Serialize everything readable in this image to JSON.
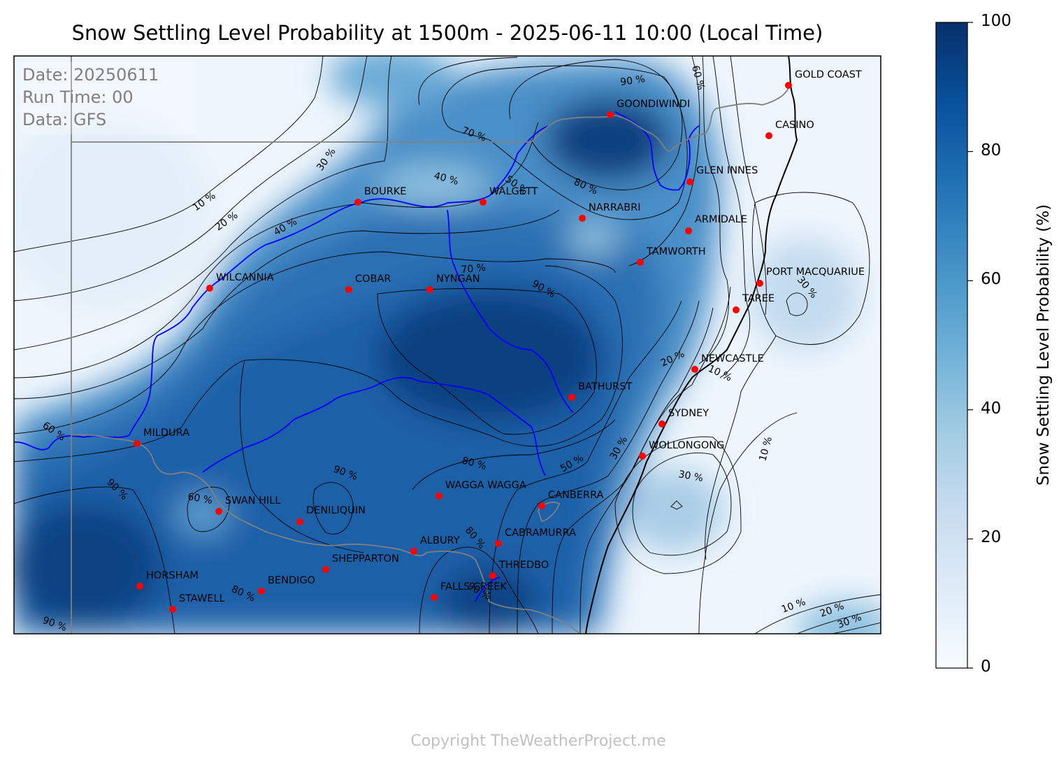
{
  "title": "Snow Settling Level Probability at 1500m - 2025-06-11 10:00 (Local Time)",
  "info": {
    "date": "Date: 20250611",
    "run": "Run Time: 00",
    "source": "Data: GFS"
  },
  "cities": [
    {
      "name": "GOLD COAST"
    },
    {
      "name": "GOONDIWINDI"
    },
    {
      "name": "CASINO"
    },
    {
      "name": "GLEN INNES"
    },
    {
      "name": "BOURKE"
    },
    {
      "name": "WALGETT"
    },
    {
      "name": "NARRABRI"
    },
    {
      "name": "ARMIDALE"
    },
    {
      "name": "TAMWORTH"
    },
    {
      "name": "WILCANNIA"
    },
    {
      "name": "COBAR"
    },
    {
      "name": "NYNGAN"
    },
    {
      "name": "PORT MACQUARIUE"
    },
    {
      "name": "TAREE"
    },
    {
      "name": "NEWCASTLE"
    },
    {
      "name": "BATHURST"
    },
    {
      "name": "SYDNEY"
    },
    {
      "name": "MILDURA"
    },
    {
      "name": "WOLLONGONG"
    },
    {
      "name": "WAGGA WAGGA"
    },
    {
      "name": "SWAN HILL"
    },
    {
      "name": "CANBERRA"
    },
    {
      "name": "DENILIQUIN"
    },
    {
      "name": "CABRAMURRA"
    },
    {
      "name": "ALBURY"
    },
    {
      "name": "SHEPPARTON"
    },
    {
      "name": "THREDBO"
    },
    {
      "name": "HORSHAM"
    },
    {
      "name": "BENDIGO"
    },
    {
      "name": "FALLS CREEK"
    },
    {
      "name": "STAWELL"
    }
  ],
  "contour_labels": [
    {
      "text": "90 %"
    },
    {
      "text": "60 %"
    },
    {
      "text": "70 %"
    },
    {
      "text": "30 %"
    },
    {
      "text": "40 %"
    },
    {
      "text": "80 %"
    },
    {
      "text": "10 %"
    },
    {
      "text": "20 %"
    },
    {
      "text": "40 %"
    },
    {
      "text": "50 %"
    },
    {
      "text": "70 %"
    },
    {
      "text": "90 %"
    },
    {
      "text": "30 %"
    },
    {
      "text": "20 %"
    },
    {
      "text": "10 %"
    },
    {
      "text": "60 %"
    },
    {
      "text": "50 %"
    },
    {
      "text": "30 %"
    },
    {
      "text": "80 %"
    },
    {
      "text": "10 %"
    },
    {
      "text": "30 %"
    },
    {
      "text": "90 %"
    },
    {
      "text": "90 %"
    },
    {
      "text": "60 %"
    },
    {
      "text": "80 %"
    },
    {
      "text": "80 %"
    },
    {
      "text": "90 %"
    },
    {
      "text": "10 %"
    },
    {
      "text": "20 %"
    },
    {
      "text": "30 %"
    },
    {
      "text": "90 %"
    }
  ],
  "colorbar": {
    "label": "Snow Settling Level Probability (%)",
    "ticks": [
      "100",
      "80",
      "60",
      "40",
      "20",
      "0"
    ],
    "colors": [
      "#f7fbff",
      "#deebf7",
      "#c6dbef",
      "#9ecae1",
      "#6baed6",
      "#4292c6",
      "#2171b5",
      "#08519c",
      "#08306b"
    ]
  },
  "copyright": "Copyright TheWeatherProject.me"
}
